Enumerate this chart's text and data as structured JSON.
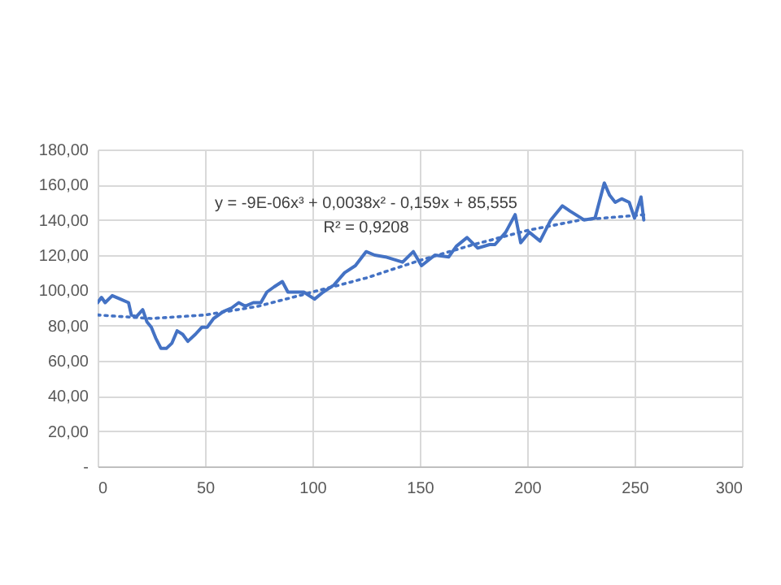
{
  "chart_data": {
    "type": "line",
    "grid": true,
    "marker": "none",
    "xlim": [
      0,
      300
    ],
    "xticks": [
      0,
      50,
      100,
      150,
      200,
      250,
      300
    ],
    "ylim": [
      0,
      180
    ],
    "yticks": [
      {
        "value": 0,
        "label": "-"
      },
      {
        "value": 20,
        "label": "20,00"
      },
      {
        "value": 40,
        "label": "40,00"
      },
      {
        "value": 60,
        "label": "60,00"
      },
      {
        "value": 80,
        "label": "80,00"
      },
      {
        "value": 100,
        "label": "100,00"
      },
      {
        "value": 120,
        "label": "120,00"
      },
      {
        "value": 140,
        "label": "140,00"
      },
      {
        "value": 160,
        "label": "160,00"
      },
      {
        "value": 180,
        "label": "180,00"
      }
    ],
    "annotations": [
      "y = -9E-06x³ + 0,0038x² - 0,159x + 85,555",
      "R² = 0,9208"
    ],
    "series": [
      {
        "color": "#4472c4",
        "line_style": "solid",
        "x": [
          0,
          1.8,
          3.5,
          6.8,
          10.6,
          14.4,
          15.7,
          18,
          21,
          23,
          25,
          27,
          29.5,
          32,
          34.6,
          37,
          39.6,
          42,
          45.5,
          48.5,
          51,
          54,
          58.6,
          62.4,
          65.7,
          68.7,
          72.5,
          76,
          78.8,
          82.2,
          86,
          88.6,
          92.4,
          96,
          101,
          105,
          110,
          115,
          120,
          125,
          129,
          134,
          142,
          147,
          150.8,
          157,
          163.5,
          167,
          172,
          177,
          182.5,
          185,
          190,
          194.4,
          197,
          201,
          206,
          211,
          216.4,
          220,
          226.5,
          231.6,
          235.9,
          238.4,
          241,
          244,
          247.5,
          250,
          253,
          254.3
        ],
        "values": [
          93,
          96,
          93,
          97,
          95,
          93,
          86,
          85,
          89,
          82,
          79,
          73,
          67,
          67,
          70,
          77,
          75,
          71,
          75,
          79,
          79,
          84,
          88,
          90,
          93,
          91,
          93,
          93,
          99,
          102,
          105,
          99,
          99,
          99,
          95,
          99,
          103,
          110,
          114,
          122,
          120,
          119,
          116,
          122,
          114,
          120,
          119,
          125,
          130,
          124,
          126,
          126,
          133,
          143,
          127,
          133,
          128,
          140,
          148,
          145,
          140,
          141,
          161,
          154,
          150,
          152,
          150,
          141,
          153,
          140
        ]
      },
      {
        "type": "line",
        "color": "#4472c4",
        "line_style": "dotted",
        "x": [
          0,
          25,
          50,
          75,
          100,
          125,
          150,
          175,
          200,
          225,
          255
        ],
        "values": [
          86,
          84,
          86,
          91,
          99,
          107,
          117,
          126,
          134,
          140,
          143
        ]
      }
    ]
  }
}
